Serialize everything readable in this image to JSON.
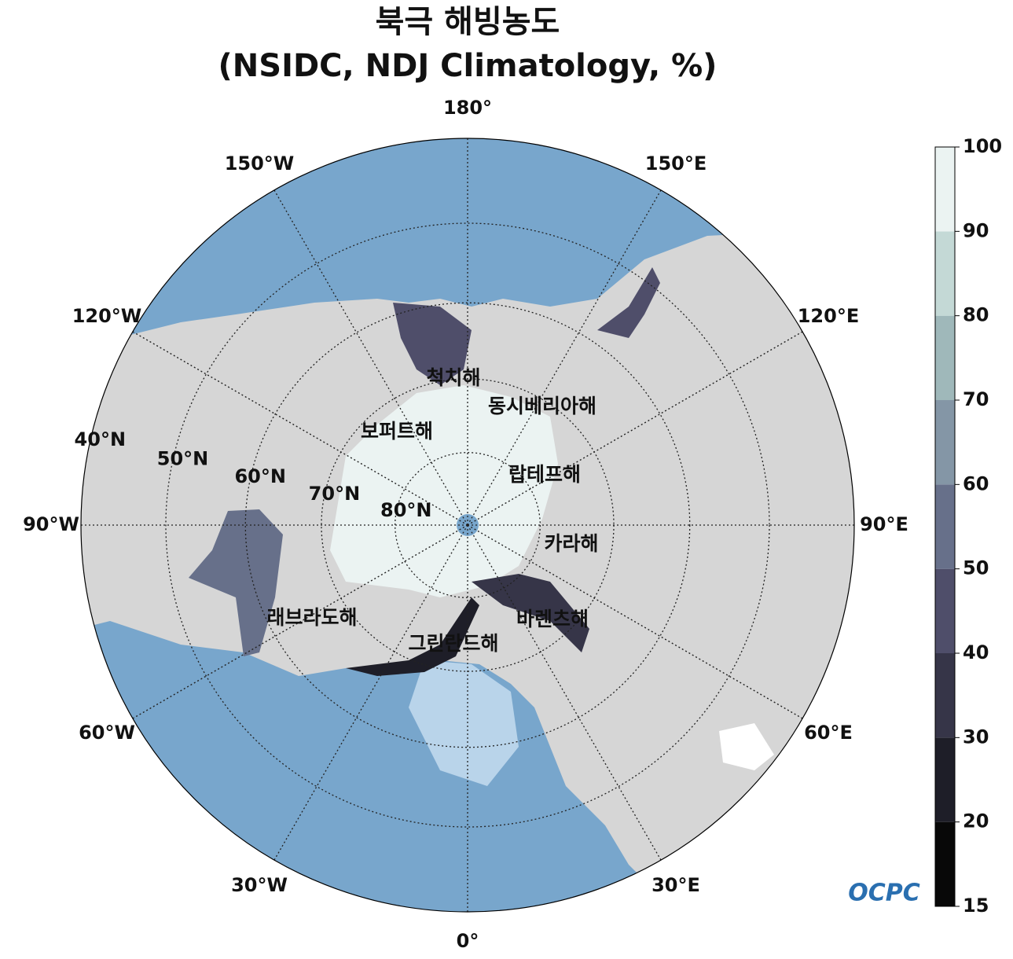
{
  "title": "북극 해빙농도",
  "subtitle": "(NSIDC, NDJ Climatology, %)",
  "meridians": [
    {
      "value": 180,
      "label": "180°"
    },
    {
      "value": 150,
      "label": "150°E"
    },
    {
      "value": 120,
      "label": "120°E"
    },
    {
      "value": 90,
      "label": "90°E"
    },
    {
      "value": 60,
      "label": "60°E"
    },
    {
      "value": 30,
      "label": "30°E"
    },
    {
      "value": 0,
      "label": "0°"
    },
    {
      "value": -30,
      "label": "30°W"
    },
    {
      "value": -60,
      "label": "60°W"
    },
    {
      "value": -90,
      "label": "90°W"
    },
    {
      "value": -120,
      "label": "120°W"
    },
    {
      "value": -150,
      "label": "150°W"
    }
  ],
  "parallels": [
    {
      "value": 80,
      "label": "80°N"
    },
    {
      "value": 70,
      "label": "70°N"
    },
    {
      "value": 60,
      "label": "60°N"
    },
    {
      "value": 50,
      "label": "50°N"
    },
    {
      "value": 40,
      "label": "40°N"
    }
  ],
  "seas": [
    "척치해",
    "동시베리아해",
    "보퍼트해",
    "랍테프해",
    "카라해",
    "래브라도해",
    "바렌츠해",
    "그린란드해"
  ],
  "colorbar": {
    "levels": [
      15,
      20,
      30,
      40,
      50,
      60,
      70,
      80,
      90,
      100
    ],
    "colors": [
      "#080808",
      "#1e1e28",
      "#363548",
      "#4f4e6a",
      "#67708a",
      "#8496a6",
      "#9fb8ba",
      "#c4d9d6",
      "#ebf3f2"
    ]
  },
  "logo": "OCPC"
}
